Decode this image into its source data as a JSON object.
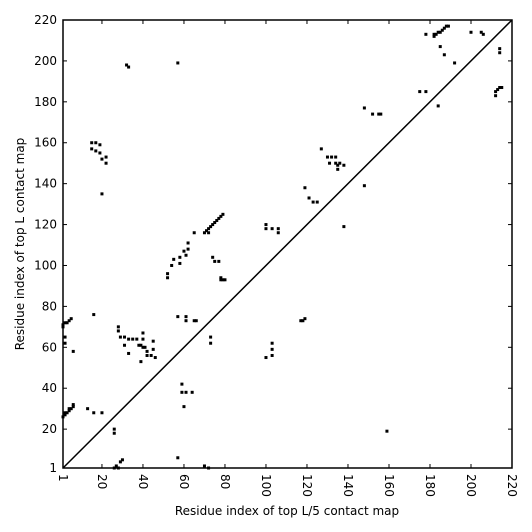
{
  "chart_data": {
    "type": "scatter",
    "xlabel": "Residue index of top L/5 contact map",
    "ylabel": "Residue index of top L contact map",
    "xlim": [
      1,
      220
    ],
    "ylim": [
      1,
      220
    ],
    "xticks": [
      1,
      20,
      40,
      60,
      80,
      100,
      120,
      140,
      160,
      180,
      200,
      220
    ],
    "yticks": [
      1,
      20,
      40,
      60,
      80,
      100,
      120,
      140,
      160,
      180,
      200,
      220
    ],
    "color": "#000000",
    "x": [
      1,
      2,
      3,
      4,
      5,
      1,
      2,
      2,
      6,
      1,
      2,
      2,
      3,
      4,
      4,
      5,
      6,
      6,
      13,
      16,
      20,
      15,
      17,
      15,
      17,
      19,
      19,
      22,
      22,
      20,
      20,
      16,
      32,
      33,
      57,
      26,
      26,
      27,
      29,
      30,
      26,
      28,
      28,
      28,
      29,
      31,
      31,
      33,
      33,
      35,
      37,
      38,
      39,
      40,
      40,
      40,
      41,
      42,
      42,
      44,
      45,
      45,
      46,
      39,
      52,
      52,
      54,
      55,
      58,
      58,
      60,
      61,
      62,
      62,
      65,
      57,
      61,
      61,
      65,
      66,
      59,
      59,
      60,
      61,
      64,
      57,
      70,
      72,
      70,
      71,
      72,
      73,
      74,
      75,
      76,
      77,
      78,
      79,
      72,
      74,
      75,
      77,
      73,
      73,
      78,
      79,
      80,
      78,
      100,
      100,
      103,
      106,
      106,
      100,
      103,
      103,
      103,
      117,
      118,
      119,
      119,
      121,
      123,
      125,
      127,
      130,
      131,
      132,
      134,
      135,
      136,
      135,
      134,
      138,
      138,
      148,
      148,
      152,
      155,
      156,
      159,
      175,
      178,
      178,
      184,
      182,
      183,
      184,
      185,
      186,
      187,
      188,
      189,
      182,
      185,
      187,
      192,
      200,
      205,
      206,
      212,
      212,
      213,
      214,
      215,
      214,
      214
    ],
    "y": [
      71,
      72,
      72,
      73,
      74,
      70,
      65,
      62,
      58,
      26,
      27,
      28,
      28,
      29,
      30,
      30,
      31,
      32,
      30,
      28,
      28,
      160,
      160,
      157,
      156,
      159,
      155,
      153,
      150,
      135,
      152,
      76,
      198,
      197,
      199,
      20,
      18,
      2,
      4,
      5,
      1,
      1,
      70,
      68,
      65,
      65,
      61,
      57,
      64,
      64,
      64,
      61,
      61,
      60,
      64,
      67,
      60,
      58,
      56,
      56,
      59,
      63,
      55,
      53,
      94,
      96,
      100,
      103,
      101,
      104,
      107,
      105,
      108,
      111,
      116,
      75,
      75,
      73,
      73,
      73,
      42,
      38,
      31,
      38,
      38,
      6,
      2,
      1,
      116,
      117,
      118,
      119,
      120,
      121,
      122,
      123,
      124,
      125,
      116,
      104,
      102,
      102,
      65,
      62,
      93,
      93,
      93,
      94,
      120,
      118,
      118,
      118,
      116,
      55,
      56,
      59,
      62,
      73,
      73,
      74,
      138,
      133,
      131,
      131,
      157,
      153,
      150,
      153,
      150,
      149,
      150,
      147,
      153,
      149,
      119,
      177,
      139,
      174,
      174,
      174,
      19,
      185,
      185,
      213,
      178,
      212,
      213,
      214,
      214,
      215,
      216,
      217,
      217,
      213,
      207,
      203,
      199,
      214,
      214,
      213,
      185,
      183,
      186,
      187,
      187,
      206,
      204
    ]
  }
}
